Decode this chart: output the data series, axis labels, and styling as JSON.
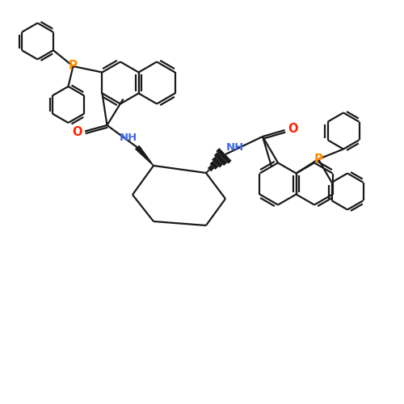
{
  "bg_color": "#ffffff",
  "bond_color": "#1a1a1a",
  "P_color": "#ff8c00",
  "N_color": "#4169e1",
  "O_color": "#ff2200",
  "lw": 1.6,
  "figsize": [
    5.0,
    5.0
  ],
  "dpi": 100,
  "xlim": [
    0,
    10
  ],
  "ylim": [
    0,
    10
  ]
}
